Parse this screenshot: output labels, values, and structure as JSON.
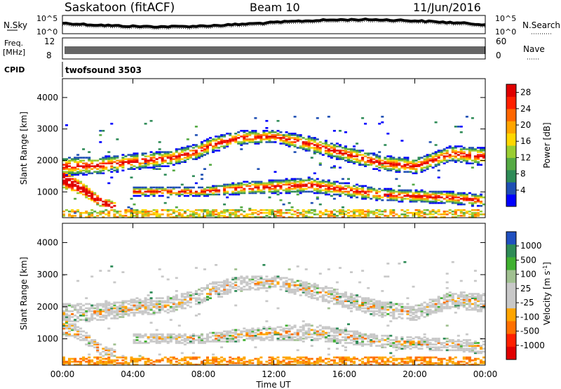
{
  "header": {
    "station": "Saskatoon (fitACF)",
    "beam": "Beam 10",
    "date": "11/Jun/2016"
  },
  "top_panels": {
    "nsky_label": "N.Sky",
    "nsearch_label": "N.Search",
    "noise_ticks": [
      "10^5",
      "10^0"
    ],
    "freq_label_line1": "Freq.",
    "freq_label_line2": "[MHz]",
    "freq_ticks": [
      "12",
      "8"
    ],
    "nave_label": "Nave",
    "nave_ticks": [
      "60",
      "0"
    ],
    "cpid_label": "CPID",
    "cpid_value": "twofsound 3503"
  },
  "colors": {
    "power": [
      "#0000ff",
      "#1f4fb4",
      "#2e8b57",
      "#55aa44",
      "#9acd32",
      "#ffd700",
      "#ffa500",
      "#ff6600",
      "#ff2000",
      "#e00000"
    ],
    "velocity": [
      "#2050c0",
      "#2e8b57",
      "#40b030",
      "#a0c090",
      "#c8c8c8",
      "#c8c8c8",
      "#ffa500",
      "#ff7000",
      "#ff2000",
      "#e00000"
    ],
    "ground": "#c0c0c0"
  },
  "chart_data": [
    {
      "type": "heatmap",
      "title": "Saskatoon (fitACF) Beam 10 11/Jun/2016",
      "xlabel": "Time UT",
      "ylabel": "Slant Range [km]",
      "x_ticks": [
        "00:00",
        "04:00",
        "08:00",
        "12:00",
        "16:00",
        "20:00",
        "00:00"
      ],
      "xlim_hours": [
        0,
        24
      ],
      "y_ticks": [
        1000,
        2000,
        3000,
        4000
      ],
      "ylim": [
        180,
        4600
      ],
      "colorbar": {
        "label": "Power [dB]",
        "ticks": [
          "4",
          "8",
          "12",
          "16",
          "20",
          "24",
          "28"
        ],
        "range": [
          0,
          30
        ]
      },
      "echo_bands": [
        {
          "name": "main",
          "points": [
            [
              0,
              1800,
              300
            ],
            [
              2,
              1820,
              280
            ],
            [
              4,
              1950,
              260
            ],
            [
              6,
              2050,
              250
            ],
            [
              7.5,
              2250,
              250
            ],
            [
              8.5,
              2500,
              250
            ],
            [
              10,
              2700,
              230
            ],
            [
              12,
              2750,
              200
            ],
            [
              14,
              2500,
              250
            ],
            [
              16,
              2200,
              250
            ],
            [
              18,
              1900,
              250
            ],
            [
              20,
              1800,
              250
            ],
            [
              22,
              2200,
              250
            ],
            [
              24,
              2100,
              300
            ]
          ]
        },
        {
          "name": "lower",
          "points": [
            [
              0,
              1400,
              300
            ],
            [
              1,
              1100,
              200
            ],
            [
              2,
              700,
              150
            ],
            [
              3,
              500,
              120
            ]
          ]
        },
        {
          "name": "near",
          "points": [
            [
              4,
              1000,
              150
            ],
            [
              8,
              1000,
              150
            ],
            [
              10,
              1100,
              200
            ],
            [
              14,
              1200,
              250
            ],
            [
              18,
              900,
              200
            ],
            [
              22,
              800,
              200
            ],
            [
              24,
              700,
              200
            ]
          ]
        }
      ]
    },
    {
      "type": "heatmap",
      "xlabel": "Time UT",
      "ylabel": "Slant Range [km]",
      "x_ticks": [
        "00:00",
        "04:00",
        "08:00",
        "12:00",
        "16:00",
        "20:00",
        "00:00"
      ],
      "xlim_hours": [
        0,
        24
      ],
      "y_ticks": [
        1000,
        2000,
        3000,
        4000
      ],
      "ylim": [
        180,
        4600
      ],
      "colorbar": {
        "label": "Velocity [m s^-1]",
        "ticks": [
          "1000",
          "500",
          "100",
          "25",
          "-25",
          "-100",
          "-500",
          "-1000"
        ]
      }
    }
  ]
}
